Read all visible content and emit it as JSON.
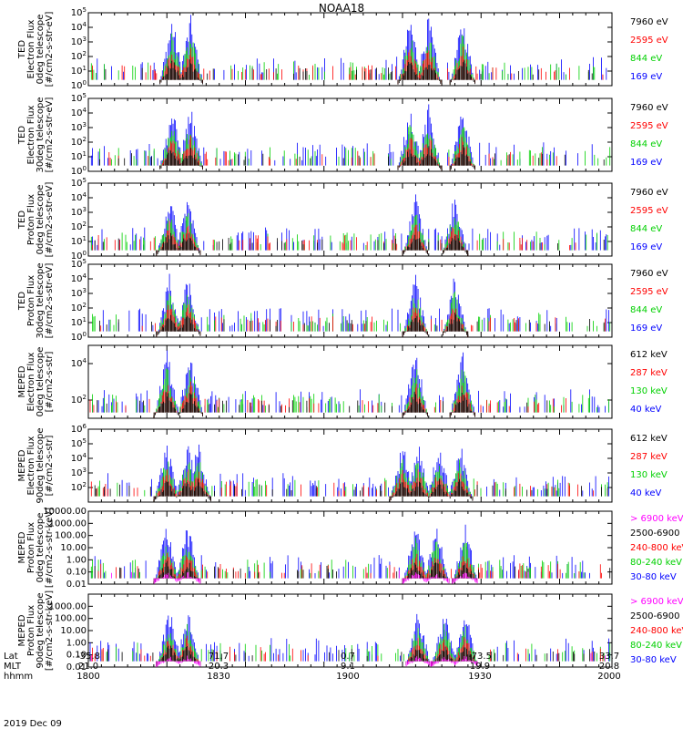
{
  "title": "NOAA18",
  "date": "2019 Dec 09",
  "colors": {
    "black": "#000000",
    "red": "#ff0000",
    "green": "#00d000",
    "blue": "#0000ff",
    "magenta": "#ff00ff",
    "frame": "#000000"
  },
  "footer": {
    "row_labels": [
      "Lat",
      "MLT",
      "hhmm"
    ],
    "columns": [
      {
        "lat": "-35.8",
        "mlt": "21.0",
        "hhmm": "1800"
      },
      {
        "lat": "71.7",
        "mlt": "20.3",
        "hhmm": "1830"
      },
      {
        "lat": "0.7",
        "mlt": "9.1",
        "hhmm": "1900"
      },
      {
        "lat": "-73.5",
        "mlt": "19.9",
        "hhmm": "1930"
      },
      {
        "lat": "33.7",
        "mlt": "20.8",
        "hhmm": "2000"
      }
    ]
  },
  "chart_data": [
    {
      "type": "line",
      "ylabel": [
        "TED",
        "Electron Flux",
        "0deg telescope",
        "[#/cm2-s-str-eV]"
      ],
      "yscale": "log",
      "ylim": [
        1,
        100000
      ],
      "ytick_labels": [
        "10^0",
        "10^1",
        "10^2",
        "10^3",
        "10^4",
        "10^5"
      ],
      "x_range": [
        1800,
        2000
      ],
      "series": [
        {
          "name": "7960 eV",
          "color": "black"
        },
        {
          "name": "2595 eV",
          "color": "red"
        },
        {
          "name": "844 eV",
          "color": "green"
        },
        {
          "name": "169 eV",
          "color": "blue"
        }
      ],
      "events": [
        {
          "x": 1832,
          "peak": 100000
        },
        {
          "x": 1839,
          "peak": 30000
        },
        {
          "x": 1923,
          "peak": 40000
        },
        {
          "x": 1930,
          "peak": 30000
        },
        {
          "x": 1943,
          "peak": 30
        }
      ]
    },
    {
      "type": "line",
      "ylabel": [
        "TED",
        "Electron Flux",
        "30deg telescope",
        "[#/cm2-s-str-eV]"
      ],
      "yscale": "log",
      "ylim": [
        1,
        100000
      ],
      "ytick_labels": [
        "10^0",
        "10^1",
        "10^2",
        "10^3",
        "10^4",
        "10^5"
      ],
      "x_range": [
        1800,
        2000
      ],
      "series": [
        {
          "name": "7960 eV",
          "color": "black"
        },
        {
          "name": "2595 eV",
          "color": "red"
        },
        {
          "name": "844 eV",
          "color": "green"
        },
        {
          "name": "169 eV",
          "color": "blue"
        }
      ],
      "events": [
        {
          "x": 1832,
          "peak": 50000
        },
        {
          "x": 1839,
          "peak": 10000
        },
        {
          "x": 1923,
          "peak": 30000
        },
        {
          "x": 1930,
          "peak": 20000
        },
        {
          "x": 1943,
          "peak": 30
        }
      ]
    },
    {
      "type": "line",
      "ylabel": [
        "TED",
        "Proton Flux",
        "0deg telescope",
        "[#/cm2-s-str-eV]"
      ],
      "yscale": "log",
      "ylim": [
        1,
        100000
      ],
      "ytick_labels": [
        "10^0",
        "10^1",
        "10^2",
        "10^3",
        "10^4",
        "10^5"
      ],
      "x_range": [
        1800,
        2000
      ],
      "series": [
        {
          "name": "7960 eV",
          "color": "black"
        },
        {
          "name": "2595 eV",
          "color": "red"
        },
        {
          "name": "844 eV",
          "color": "green"
        },
        {
          "name": "169 eV",
          "color": "blue"
        }
      ],
      "events": [
        {
          "x": 1831,
          "peak": 5000
        },
        {
          "x": 1838,
          "peak": 4000
        },
        {
          "x": 1925,
          "peak": 30000
        },
        {
          "x": 1940,
          "peak": 500
        }
      ]
    },
    {
      "type": "line",
      "ylabel": [
        "TED",
        "Proton Flux",
        "30deg telescope",
        "[#/cm2-s-str-eV]"
      ],
      "yscale": "log",
      "ylim": [
        1,
        100000
      ],
      "ytick_labels": [
        "10^0",
        "10^1",
        "10^2",
        "10^3",
        "10^4",
        "10^5"
      ],
      "x_range": [
        1800,
        2000
      ],
      "series": [
        {
          "name": "7960 eV",
          "color": "black"
        },
        {
          "name": "2595 eV",
          "color": "red"
        },
        {
          "name": "844 eV",
          "color": "green"
        },
        {
          "name": "169 eV",
          "color": "blue"
        }
      ],
      "events": [
        {
          "x": 1831,
          "peak": 5000
        },
        {
          "x": 1838,
          "peak": 5000
        },
        {
          "x": 1925,
          "peak": 30000
        },
        {
          "x": 1940,
          "peak": 500
        }
      ]
    },
    {
      "type": "line",
      "ylabel": [
        "MEPED",
        "Electron Flux",
        "0deg telescope",
        "[#/cm2-s-str]"
      ],
      "yscale": "log",
      "ylim": [
        10,
        100000
      ],
      "ytick_labels": [
        "10^2",
        "10^4"
      ],
      "x_range": [
        1800,
        2000
      ],
      "series": [
        {
          "name": "612 keV",
          "color": "black"
        },
        {
          "name": "287 keV",
          "color": "red"
        },
        {
          "name": "130 keV",
          "color": "green"
        },
        {
          "name": "40 keV",
          "color": "blue"
        }
      ],
      "events": [
        {
          "x": 1830,
          "peak": 3000
        },
        {
          "x": 1839,
          "peak": 100000
        },
        {
          "x": 1925,
          "peak": 10000
        },
        {
          "x": 1943,
          "peak": 1000
        }
      ]
    },
    {
      "type": "line",
      "ylabel": [
        "MEPED",
        "Electron Flux",
        "90deg telescope",
        "[#/cm2-s-str]"
      ],
      "yscale": "log",
      "ylim": [
        10,
        1000000
      ],
      "ytick_labels": [
        "10^2",
        "10^3",
        "10^4",
        "10^5",
        "10^6"
      ],
      "x_range": [
        1800,
        2000
      ],
      "series": [
        {
          "name": "612 keV",
          "color": "black"
        },
        {
          "name": "287 keV",
          "color": "red"
        },
        {
          "name": "130 keV",
          "color": "green"
        },
        {
          "name": "40 keV",
          "color": "blue"
        }
      ],
      "events": [
        {
          "x": 1830,
          "peak": 5000
        },
        {
          "x": 1838,
          "peak": 100000
        },
        {
          "x": 1842,
          "peak": 30000
        },
        {
          "x": 1920,
          "peak": 50000
        },
        {
          "x": 1926,
          "peak": 200000
        },
        {
          "x": 1934,
          "peak": 30000
        },
        {
          "x": 1942,
          "peak": 60000
        }
      ]
    },
    {
      "type": "line",
      "ylabel": [
        "MEPED",
        "Proton Flux",
        "0deg telescope",
        "[#/cm2-s-str-keV]"
      ],
      "yscale": "log",
      "ylim": [
        0.01,
        10000
      ],
      "ytick_labels": [
        "0.01",
        "0.10",
        "1.00",
        "10.00",
        "100.00",
        "1000.00",
        "10000.00"
      ],
      "x_range": [
        1800,
        2000
      ],
      "series": [
        {
          "name": "> 6900 keV",
          "color": "magenta"
        },
        {
          "name": "2500-6900",
          "color": "black"
        },
        {
          "name": "240-800 keV",
          "color": "red"
        },
        {
          "name": "80-240 keV",
          "color": "green"
        },
        {
          "name": "30-80 keV",
          "color": "blue"
        }
      ],
      "events": [
        {
          "x": 1830,
          "peak": 500
        },
        {
          "x": 1838,
          "peak": 60
        },
        {
          "x": 1925,
          "peak": 1000
        },
        {
          "x": 1933,
          "peak": 1500
        },
        {
          "x": 1944,
          "peak": 1
        }
      ]
    },
    {
      "type": "line",
      "ylabel": [
        "MEPED",
        "Proton Flux",
        "90deg telescope",
        "[#/cm2-s-str-keV]"
      ],
      "yscale": "log",
      "ylim": [
        0.01,
        10000
      ],
      "ytick_labels": [
        "0.01",
        "0.10",
        "1.00",
        "10.00",
        "100.00",
        "1000.00"
      ],
      "x_range": [
        1800,
        2000
      ],
      "series": [
        {
          "name": "> 6900 keV",
          "color": "magenta"
        },
        {
          "name": "2500-6900",
          "color": "black"
        },
        {
          "name": "240-800 keV",
          "color": "red"
        },
        {
          "name": "80-240 keV",
          "color": "green"
        },
        {
          "name": "30-80 keV",
          "color": "blue"
        }
      ],
      "events": [
        {
          "x": 1831,
          "peak": 300
        },
        {
          "x": 1838,
          "peak": 100
        },
        {
          "x": 1926,
          "peak": 1000
        },
        {
          "x": 1936,
          "peak": 500
        },
        {
          "x": 1944,
          "peak": 2
        }
      ]
    }
  ]
}
